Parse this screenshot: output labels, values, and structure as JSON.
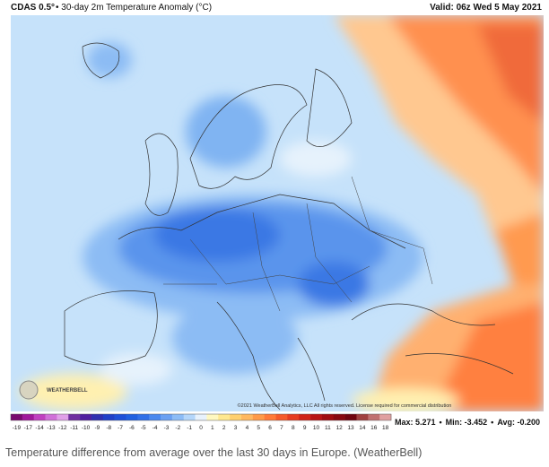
{
  "header": {
    "model": "CDAS 0.5°",
    "title": "• 30-day 2m Temperature Anomaly (°C)",
    "valid": "Valid: 06z Wed 5 May 2021"
  },
  "map": {
    "copyright": "©2021 WeatherBell Analytics, LLC All rights reserved. License required for commercial distribution",
    "logo": "WEATHERBELL"
  },
  "legend": {
    "values": [
      -19,
      -17,
      -14,
      -13,
      -12,
      -11,
      -10,
      -9,
      -8,
      -7,
      -6,
      -5,
      -4,
      -3,
      -2,
      -1,
      0,
      1,
      2,
      3,
      4,
      5,
      6,
      7,
      8,
      9,
      10,
      11,
      12,
      13,
      14,
      16,
      18
    ],
    "colors": [
      "#7a0a6e",
      "#a0189a",
      "#c040c0",
      "#d070d8",
      "#e0a0e8",
      "#7030a0",
      "#5020a0",
      "#3030b0",
      "#2040c8",
      "#1e50d8",
      "#2060e0",
      "#3070e8",
      "#4a88ee",
      "#6aa0f2",
      "#8cbcf6",
      "#b4d6fa",
      "#e8f2fc",
      "#fff8c0",
      "#ffe890",
      "#ffd070",
      "#ffb860",
      "#ff9a48",
      "#ff7a38",
      "#f55a2a",
      "#e63c20",
      "#d02418",
      "#b81414",
      "#a00c10",
      "#880810",
      "#700510",
      "#a04040",
      "#c07070",
      "#e0a0a0"
    ]
  },
  "stats": {
    "items": [
      "Max: 5.271",
      "Min: -3.452",
      "Avg: -0.200"
    ],
    "separator": "•"
  },
  "caption": "Temperature difference from average over the last 30 days in Europe. (WeatherBell)"
}
